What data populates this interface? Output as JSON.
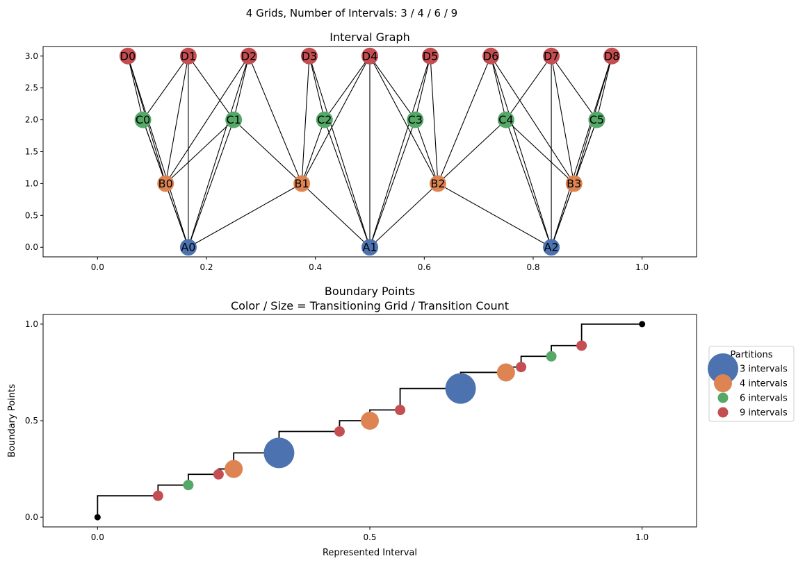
{
  "figure_title": "4 Grids, Number of Intervals: 3 / 4 / 6 / 9",
  "colors": {
    "A": "#4c72b0",
    "B": "#dd8452",
    "C": "#55a868",
    "D": "#c44e52",
    "edge": "#000000",
    "step": "#000000"
  },
  "chart_data": [
    {
      "type": "graph",
      "title": "Interval Graph",
      "xlim": [
        -0.1,
        1.1
      ],
      "ylim": [
        -0.15,
        3.15
      ],
      "xticks": [
        "0.0",
        "0.2",
        "0.4",
        "0.6",
        "0.8",
        "1.0"
      ],
      "yticks": [
        "0.0",
        "0.5",
        "1.0",
        "1.5",
        "2.0",
        "2.5",
        "3.0"
      ],
      "nodes": [
        {
          "id": "A0",
          "group": "A",
          "x": 0.1667,
          "y": 0
        },
        {
          "id": "A1",
          "group": "A",
          "x": 0.5,
          "y": 0
        },
        {
          "id": "A2",
          "group": "A",
          "x": 0.8333,
          "y": 0
        },
        {
          "id": "B0",
          "group": "B",
          "x": 0.125,
          "y": 1
        },
        {
          "id": "B1",
          "group": "B",
          "x": 0.375,
          "y": 1
        },
        {
          "id": "B2",
          "group": "B",
          "x": 0.625,
          "y": 1
        },
        {
          "id": "B3",
          "group": "B",
          "x": 0.875,
          "y": 1
        },
        {
          "id": "C0",
          "group": "C",
          "x": 0.0833,
          "y": 2
        },
        {
          "id": "C1",
          "group": "C",
          "x": 0.25,
          "y": 2
        },
        {
          "id": "C2",
          "group": "C",
          "x": 0.4167,
          "y": 2
        },
        {
          "id": "C3",
          "group": "C",
          "x": 0.5833,
          "y": 2
        },
        {
          "id": "C4",
          "group": "C",
          "x": 0.75,
          "y": 2
        },
        {
          "id": "C5",
          "group": "C",
          "x": 0.9167,
          "y": 2
        },
        {
          "id": "D0",
          "group": "D",
          "x": 0.0556,
          "y": 3
        },
        {
          "id": "D1",
          "group": "D",
          "x": 0.1667,
          "y": 3
        },
        {
          "id": "D2",
          "group": "D",
          "x": 0.2778,
          "y": 3
        },
        {
          "id": "D3",
          "group": "D",
          "x": 0.3889,
          "y": 3
        },
        {
          "id": "D4",
          "group": "D",
          "x": 0.5,
          "y": 3
        },
        {
          "id": "D5",
          "group": "D",
          "x": 0.6111,
          "y": 3
        },
        {
          "id": "D6",
          "group": "D",
          "x": 0.7222,
          "y": 3
        },
        {
          "id": "D7",
          "group": "D",
          "x": 0.8333,
          "y": 3
        },
        {
          "id": "D8",
          "group": "D",
          "x": 0.9444,
          "y": 3
        }
      ],
      "edges": [
        [
          "A0",
          "B0"
        ],
        [
          "A0",
          "B1"
        ],
        [
          "A0",
          "C0"
        ],
        [
          "A0",
          "C1"
        ],
        [
          "A0",
          "D0"
        ],
        [
          "A0",
          "D1"
        ],
        [
          "A0",
          "D2"
        ],
        [
          "A1",
          "B1"
        ],
        [
          "A1",
          "B2"
        ],
        [
          "A1",
          "C2"
        ],
        [
          "A1",
          "C3"
        ],
        [
          "A1",
          "D3"
        ],
        [
          "A1",
          "D4"
        ],
        [
          "A1",
          "D5"
        ],
        [
          "A2",
          "B2"
        ],
        [
          "A2",
          "B3"
        ],
        [
          "A2",
          "C4"
        ],
        [
          "A2",
          "C5"
        ],
        [
          "A2",
          "D6"
        ],
        [
          "A2",
          "D7"
        ],
        [
          "A2",
          "D8"
        ],
        [
          "B0",
          "C0"
        ],
        [
          "B0",
          "C1"
        ],
        [
          "B0",
          "D0"
        ],
        [
          "B0",
          "D1"
        ],
        [
          "B0",
          "D2"
        ],
        [
          "B1",
          "C1"
        ],
        [
          "B1",
          "C2"
        ],
        [
          "B1",
          "D2"
        ],
        [
          "B1",
          "D3"
        ],
        [
          "B1",
          "D4"
        ],
        [
          "B2",
          "C3"
        ],
        [
          "B2",
          "C4"
        ],
        [
          "B2",
          "D4"
        ],
        [
          "B2",
          "D5"
        ],
        [
          "B2",
          "D6"
        ],
        [
          "B3",
          "C4"
        ],
        [
          "B3",
          "C5"
        ],
        [
          "B3",
          "D6"
        ],
        [
          "B3",
          "D7"
        ],
        [
          "B3",
          "D8"
        ],
        [
          "C0",
          "D0"
        ],
        [
          "C0",
          "D1"
        ],
        [
          "C1",
          "D1"
        ],
        [
          "C1",
          "D2"
        ],
        [
          "C2",
          "D3"
        ],
        [
          "C2",
          "D4"
        ],
        [
          "C3",
          "D4"
        ],
        [
          "C3",
          "D5"
        ],
        [
          "C4",
          "D6"
        ],
        [
          "C4",
          "D7"
        ],
        [
          "C5",
          "D7"
        ],
        [
          "C5",
          "D8"
        ]
      ]
    },
    {
      "type": "step",
      "title_line1": "Boundary Points",
      "title_line2": "Color / Size = Transitioning Grid / Transition Count",
      "xlabel": "Represented Interval",
      "ylabel": "Boundary Points",
      "xlim": [
        -0.1,
        1.1
      ],
      "ylim": [
        -0.05,
        1.05
      ],
      "xticks": [
        "0.0",
        "0.5",
        "1.0"
      ],
      "yticks": [
        "0.0",
        "0.5",
        "1.0"
      ],
      "legend_title": "Partitions",
      "legend_position": "right",
      "legend": [
        {
          "label": "3 intervals",
          "group": "A"
        },
        {
          "label": "4 intervals",
          "group": "B"
        },
        {
          "label": "6 intervals",
          "group": "C"
        },
        {
          "label": "9 intervals",
          "group": "D"
        }
      ],
      "points": [
        {
          "x": 0.0,
          "y": 0.0,
          "group": "end"
        },
        {
          "x": 0.1111,
          "y": 0.1111,
          "group": "D"
        },
        {
          "x": 0.1667,
          "y": 0.1667,
          "group": "C"
        },
        {
          "x": 0.2222,
          "y": 0.2222,
          "group": "D"
        },
        {
          "x": 0.25,
          "y": 0.25,
          "group": "B"
        },
        {
          "x": 0.3333,
          "y": 0.3333,
          "group": "A"
        },
        {
          "x": 0.4444,
          "y": 0.4444,
          "group": "D"
        },
        {
          "x": 0.5,
          "y": 0.5,
          "group": "B"
        },
        {
          "x": 0.5556,
          "y": 0.5556,
          "group": "D"
        },
        {
          "x": 0.6667,
          "y": 0.6667,
          "group": "A"
        },
        {
          "x": 0.75,
          "y": 0.75,
          "group": "B"
        },
        {
          "x": 0.7778,
          "y": 0.7778,
          "group": "D"
        },
        {
          "x": 0.8333,
          "y": 0.8333,
          "group": "C"
        },
        {
          "x": 0.8889,
          "y": 0.8889,
          "group": "D"
        },
        {
          "x": 1.0,
          "y": 1.0,
          "group": "end"
        }
      ]
    }
  ]
}
